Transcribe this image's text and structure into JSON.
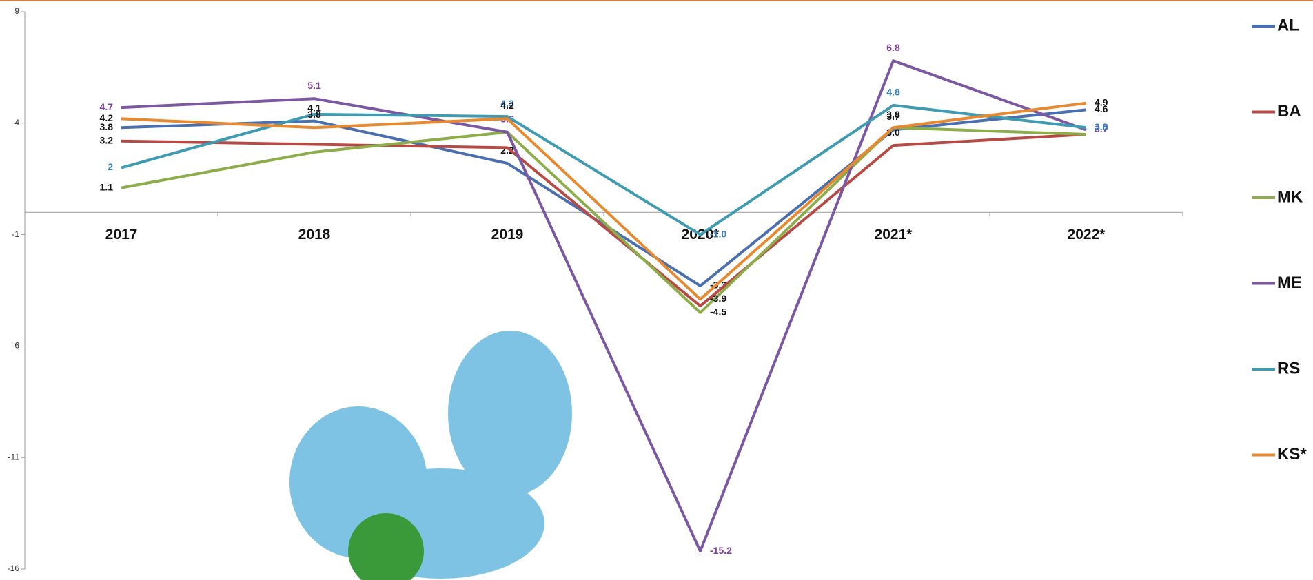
{
  "chart_data": {
    "type": "line",
    "categories": [
      "2017",
      "2018",
      "2019",
      "2020*",
      "2021*",
      "2022*"
    ],
    "ylim": [
      -16,
      9
    ],
    "yticks": [
      -16,
      -11,
      -6,
      -1,
      4,
      9
    ],
    "series": [
      {
        "name": "AL",
        "color": "#4a6fb0",
        "label_color": "#111111",
        "values": [
          3.8,
          4.1,
          2.2,
          -3.3,
          3.7,
          4.6
        ],
        "value_labels": [
          "3.8",
          "4.1",
          "2.2",
          "-3.3",
          "3.7",
          "4.6"
        ]
      },
      {
        "name": "BA",
        "color": "#b84a45",
        "label_color": "#111111",
        "values": [
          3.2,
          3.05,
          2.9,
          -4.2,
          3.0,
          3.5
        ],
        "value_labels": [
          "3.2",
          null,
          null,
          null,
          "3.0",
          null
        ]
      },
      {
        "name": "MK",
        "color": "#8cad49",
        "label_color": "#111111",
        "values": [
          1.1,
          2.7,
          3.6,
          -4.5,
          3.8,
          3.5
        ],
        "value_labels": [
          "1.1",
          null,
          null,
          "-4.5",
          null,
          null
        ]
      },
      {
        "name": "ME",
        "color": "#7d58a2",
        "label_color": "#7d3fa0",
        "values": [
          4.7,
          5.1,
          3.6,
          -15.2,
          6.8,
          3.7
        ],
        "value_labels": [
          "4.7",
          "5.1",
          "3.6",
          "-15.2",
          "6.8",
          "3.7"
        ]
      },
      {
        "name": "RS",
        "color": "#3e9bb2",
        "label_color": "#2e7cc2",
        "values": [
          2.0,
          4.4,
          4.3,
          -1.0,
          4.8,
          3.8
        ],
        "value_labels": [
          "2",
          null,
          "4.3",
          "-1.0",
          "4.8",
          "3.8"
        ]
      },
      {
        "name": "KS*",
        "color": "#e8892f",
        "label_color": "#111111",
        "values": [
          4.2,
          3.8,
          4.2,
          -3.9,
          3.8,
          4.9
        ],
        "value_labels": [
          "4.2",
          "3.8",
          "4.2",
          "-3.9",
          "3.8",
          "4.9"
        ]
      }
    ]
  }
}
